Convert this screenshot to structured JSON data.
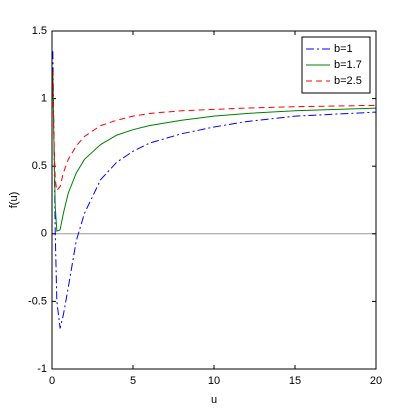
{
  "chart_data": {
    "type": "line",
    "xlabel": "u",
    "ylabel": "f(u)",
    "x": [
      0.05,
      0.1,
      0.2,
      0.3,
      0.5,
      0.7,
      1,
      1.5,
      2,
      3,
      4,
      5,
      6,
      8,
      10,
      12,
      15,
      20
    ],
    "series": [
      {
        "name": "b=1",
        "color": "#0000ff",
        "linestyle": "-.",
        "values": [
          1.35,
          0.9,
          0.0,
          -0.5,
          -0.7,
          -0.6,
          -0.4,
          -0.05,
          0.15,
          0.4,
          0.53,
          0.61,
          0.67,
          0.74,
          0.79,
          0.83,
          0.87,
          0.9
        ]
      },
      {
        "name": "b=1.7",
        "color": "#008000",
        "linestyle": "-",
        "values": [
          1.2,
          0.8,
          0.2,
          0.02,
          0.03,
          0.15,
          0.3,
          0.45,
          0.55,
          0.66,
          0.73,
          0.77,
          0.8,
          0.84,
          0.87,
          0.89,
          0.91,
          0.93
        ]
      },
      {
        "name": "b=2.5",
        "color": "#ff0000",
        "linestyle": "--",
        "values": [
          1.2,
          0.8,
          0.4,
          0.32,
          0.35,
          0.45,
          0.55,
          0.65,
          0.72,
          0.8,
          0.84,
          0.87,
          0.89,
          0.91,
          0.92,
          0.93,
          0.94,
          0.95
        ]
      }
    ],
    "xlim": [
      0,
      20
    ],
    "xticks": [
      0,
      5,
      10,
      15,
      20
    ],
    "ylim": [
      -1,
      1.5
    ],
    "yticks": [
      -1,
      -0.5,
      0,
      0.5,
      1,
      1.5
    ],
    "grid": false,
    "legend": "top-right",
    "zero_line_color": "#999999"
  }
}
